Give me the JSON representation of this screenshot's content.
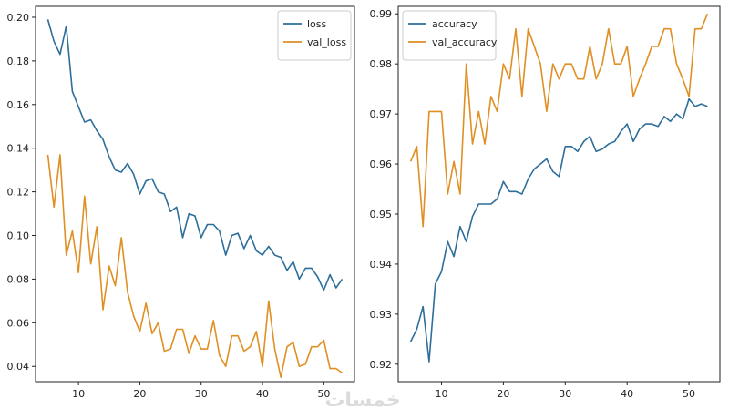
{
  "colors": {
    "blue": "#2d6e9a",
    "orange": "#e08f22",
    "axis": "#222222"
  },
  "watermark": "خمسات",
  "chart_data": [
    {
      "type": "line",
      "xlim": [
        3,
        55
      ],
      "ylim": [
        0.033,
        0.205
      ],
      "xticks": [
        10,
        20,
        30,
        40,
        50
      ],
      "yticks": [
        0.04,
        0.06,
        0.08,
        0.1,
        0.12,
        0.14,
        0.16,
        0.18,
        0.2
      ],
      "ytick_labels": [
        "0.04",
        "0.06",
        "0.08",
        "0.10",
        "0.12",
        "0.14",
        "0.16",
        "0.18",
        "0.20"
      ],
      "legend_position": "top-right",
      "x": [
        5,
        6,
        7,
        8,
        9,
        10,
        11,
        12,
        13,
        14,
        15,
        16,
        17,
        18,
        19,
        20,
        21,
        22,
        23,
        24,
        25,
        26,
        27,
        28,
        29,
        30,
        31,
        32,
        33,
        34,
        35,
        36,
        37,
        38,
        39,
        40,
        41,
        42,
        43,
        44,
        45,
        46,
        47,
        48,
        49,
        50,
        51,
        52,
        53
      ],
      "series": [
        {
          "name": "loss",
          "color": "blue",
          "values": [
            0.199,
            0.189,
            0.183,
            0.196,
            0.166,
            0.159,
            0.152,
            0.153,
            0.148,
            0.144,
            0.136,
            0.13,
            0.129,
            0.133,
            0.128,
            0.119,
            0.125,
            0.126,
            0.12,
            0.119,
            0.111,
            0.113,
            0.099,
            0.11,
            0.109,
            0.099,
            0.105,
            0.105,
            0.102,
            0.091,
            0.1,
            0.101,
            0.094,
            0.1,
            0.093,
            0.091,
            0.095,
            0.091,
            0.09,
            0.084,
            0.088,
            0.08,
            0.085,
            0.085,
            0.081,
            0.075,
            0.082,
            0.076,
            0.08
          ]
        },
        {
          "name": "val_loss",
          "color": "orange",
          "values": [
            0.137,
            0.113,
            0.137,
            0.091,
            0.102,
            0.083,
            0.118,
            0.087,
            0.104,
            0.066,
            0.086,
            0.077,
            0.099,
            0.074,
            0.063,
            0.056,
            0.069,
            0.055,
            0.06,
            0.047,
            0.048,
            0.057,
            0.057,
            0.046,
            0.054,
            0.048,
            0.048,
            0.061,
            0.045,
            0.04,
            0.054,
            0.054,
            0.047,
            0.049,
            0.056,
            0.04,
            0.07,
            0.048,
            0.035,
            0.049,
            0.051,
            0.04,
            0.041,
            0.049,
            0.049,
            0.052,
            0.039,
            0.039,
            0.037
          ]
        }
      ]
    },
    {
      "type": "line",
      "xlim": [
        3,
        55
      ],
      "ylim": [
        0.9165,
        0.9915
      ],
      "xticks": [
        10,
        20,
        30,
        40,
        50
      ],
      "yticks": [
        0.92,
        0.93,
        0.94,
        0.95,
        0.96,
        0.97,
        0.98,
        0.99
      ],
      "ytick_labels": [
        "0.92",
        "0.93",
        "0.94",
        "0.95",
        "0.96",
        "0.97",
        "0.98",
        "0.99"
      ],
      "legend_position": "top-left",
      "x": [
        5,
        6,
        7,
        8,
        9,
        10,
        11,
        12,
        13,
        14,
        15,
        16,
        17,
        18,
        19,
        20,
        21,
        22,
        23,
        24,
        25,
        26,
        27,
        28,
        29,
        30,
        31,
        32,
        33,
        34,
        35,
        36,
        37,
        38,
        39,
        40,
        41,
        42,
        43,
        44,
        45,
        46,
        47,
        48,
        49,
        50,
        51,
        52,
        53
      ],
      "series": [
        {
          "name": "accuracy",
          "color": "blue",
          "values": [
            0.9245,
            0.927,
            0.9315,
            0.9205,
            0.936,
            0.9385,
            0.9445,
            0.9415,
            0.9475,
            0.9445,
            0.9495,
            0.952,
            0.952,
            0.952,
            0.953,
            0.9565,
            0.9545,
            0.9545,
            0.954,
            0.957,
            0.959,
            0.96,
            0.961,
            0.9585,
            0.9575,
            0.9635,
            0.9635,
            0.9625,
            0.9645,
            0.9655,
            0.9625,
            0.963,
            0.964,
            0.9645,
            0.9665,
            0.968,
            0.9645,
            0.967,
            0.968,
            0.968,
            0.9675,
            0.9695,
            0.9685,
            0.97,
            0.969,
            0.973,
            0.9715,
            0.972,
            0.9715
          ]
        },
        {
          "name": "val_accuracy",
          "color": "orange",
          "values": [
            0.9605,
            0.9635,
            0.9475,
            0.9705,
            0.9705,
            0.9705,
            0.954,
            0.9605,
            0.954,
            0.98,
            0.964,
            0.9705,
            0.964,
            0.9735,
            0.9705,
            0.98,
            0.977,
            0.987,
            0.9735,
            0.987,
            0.9835,
            0.98,
            0.9705,
            0.98,
            0.977,
            0.98,
            0.98,
            0.977,
            0.977,
            0.9835,
            0.977,
            0.98,
            0.987,
            0.98,
            0.98,
            0.9835,
            0.9735,
            0.977,
            0.98,
            0.9835,
            0.9835,
            0.987,
            0.987,
            0.98,
            0.977,
            0.9735,
            0.987,
            0.987,
            0.99
          ]
        }
      ]
    }
  ]
}
